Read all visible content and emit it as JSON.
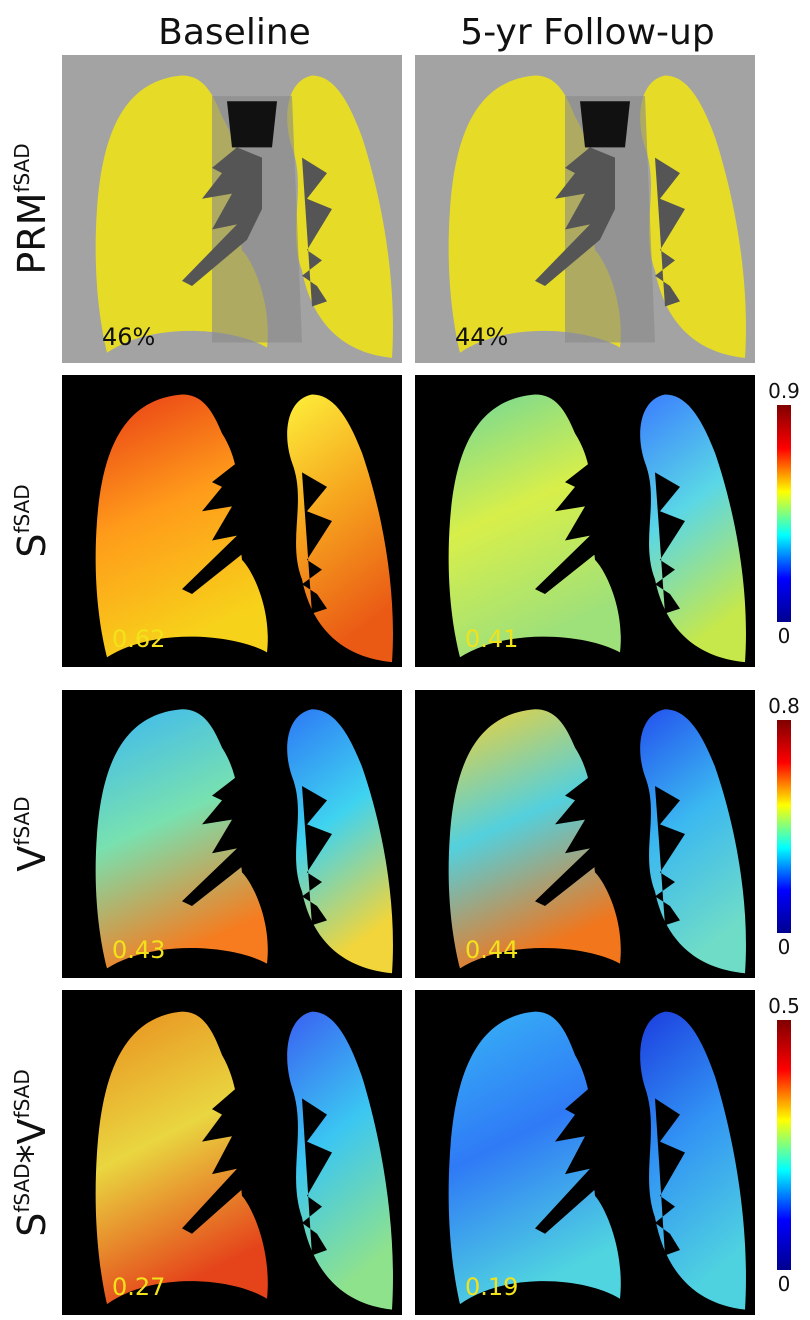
{
  "columns": [
    "Baseline",
    "5-yr Follow-up"
  ],
  "rows": [
    {
      "label": [
        {
          "text": "PRM"
        },
        {
          "text": "fSAD",
          "sup": true
        }
      ],
      "values": [
        "46%",
        "44%"
      ]
    },
    {
      "label": [
        {
          "text": "S"
        },
        {
          "text": "fSAD",
          "sup": true
        }
      ],
      "values": [
        "0.62",
        "0.41"
      ],
      "colorbar": {
        "max": "0.9",
        "min": "0"
      }
    },
    {
      "label": [
        {
          "text": "V"
        },
        {
          "text": "fSAD",
          "sup": true
        }
      ],
      "values": [
        "0.43",
        "0.44"
      ],
      "colorbar": {
        "max": "0.8",
        "min": "0"
      }
    },
    {
      "label": [
        {
          "text": "S"
        },
        {
          "text": "fSAD",
          "sup": true
        },
        {
          "text": "*"
        },
        {
          "text": "V"
        },
        {
          "text": "fSAD",
          "sup": true
        }
      ],
      "values": [
        "0.27",
        "0.19"
      ],
      "colorbar": {
        "max": "0.5",
        "min": "0"
      }
    }
  ]
}
